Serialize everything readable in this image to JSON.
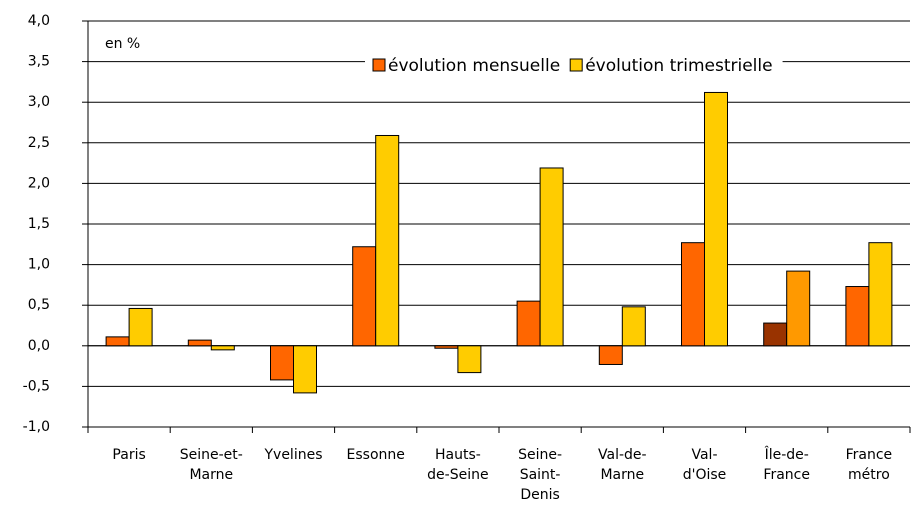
{
  "chart_data": {
    "type": "bar",
    "annotation": "en %",
    "categories": [
      [
        "Paris"
      ],
      [
        "Seine-et-",
        "Marne"
      ],
      [
        "Yvelines"
      ],
      [
        "Essonne"
      ],
      [
        "Hauts-",
        "de-Seine"
      ],
      [
        "Seine-",
        "Saint-",
        "Denis"
      ],
      [
        "Val-de-",
        "Marne"
      ],
      [
        "Val-",
        "d'Oise"
      ],
      [
        "Île-de-",
        "France"
      ],
      [
        "France",
        "métro"
      ]
    ],
    "series": [
      {
        "name": "évolution mensuelle",
        "color": "#ff6600",
        "colors": [
          "#ff6600",
          "#ff6600",
          "#ff6600",
          "#ff6600",
          "#ff6600",
          "#ff6600",
          "#ff6600",
          "#ff6600",
          "#993300",
          "#ff6600"
        ],
        "values": [
          0.11,
          0.07,
          -0.42,
          1.22,
          -0.03,
          0.55,
          -0.23,
          1.27,
          0.28,
          0.73
        ]
      },
      {
        "name": "évolution trimestrielle",
        "color": "#ffcc00",
        "colors": [
          "#ffcc00",
          "#ffcc00",
          "#ffcc00",
          "#ffcc00",
          "#ffcc00",
          "#ffcc00",
          "#ffcc00",
          "#ffcc00",
          "#ff9900",
          "#ffcc00"
        ],
        "values": [
          0.46,
          -0.05,
          -0.58,
          2.59,
          -0.33,
          2.19,
          0.48,
          3.12,
          0.92,
          1.27
        ]
      }
    ],
    "ylim": [
      -1.0,
      4.0
    ],
    "yticks": [
      {
        "value": -1.0,
        "label": "-1,0"
      },
      {
        "value": -0.5,
        "label": "-0,5"
      },
      {
        "value": 0.0,
        "label": "0,0"
      },
      {
        "value": 0.5,
        "label": "0,5"
      },
      {
        "value": 1.0,
        "label": "1,0"
      },
      {
        "value": 1.5,
        "label": "1,5"
      },
      {
        "value": 2.0,
        "label": "2,0"
      },
      {
        "value": 2.5,
        "label": "2,5"
      },
      {
        "value": 3.0,
        "label": "3,0"
      },
      {
        "value": 3.5,
        "label": "3,5"
      },
      {
        "value": 4.0,
        "label": "4,0"
      }
    ],
    "grid": true,
    "legend": "top-right"
  }
}
